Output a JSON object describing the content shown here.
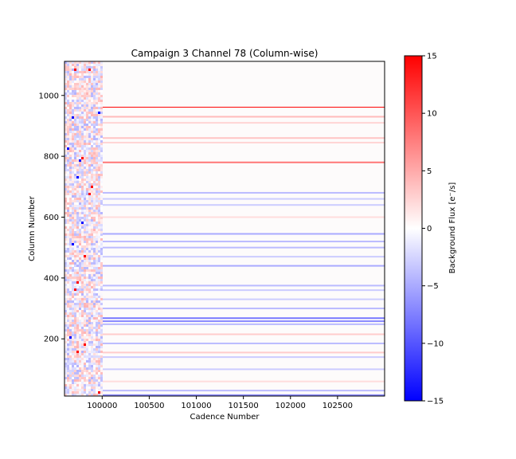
{
  "chart_data": {
    "type": "heatmap",
    "title": "Campaign 3 Channel 78 (Column-wise)",
    "xlabel": "Cadence Number",
    "ylabel": "Column Number",
    "xlim": [
      99600,
      103000
    ],
    "ylim": [
      12,
      1112
    ],
    "xticks": [
      100000,
      100500,
      101000,
      101500,
      102000,
      102500
    ],
    "xtick_labels": [
      "100000",
      "100500",
      "101000",
      "101500",
      "102000",
      "102500"
    ],
    "yticks": [
      200,
      400,
      600,
      800,
      1000
    ],
    "ytick_labels": [
      "200",
      "400",
      "600",
      "800",
      "1000"
    ],
    "colorbar": {
      "label": "Background Flux [e⁻/s]",
      "range": [
        -15,
        15
      ],
      "ticks": [
        -15,
        -10,
        -5,
        0,
        5,
        10,
        15
      ],
      "tick_labels": [
        "−15",
        "−10",
        "−5",
        "0",
        "5",
        "10",
        "15"
      ],
      "colormap": "bwr",
      "colors": {
        "low": "#0000ff",
        "mid": "#ffffff",
        "high": "#ff0000"
      }
    },
    "noisy_region_end_cadence": 100000,
    "column_bands": [
      {
        "column": 960,
        "value": 15
      },
      {
        "column": 930,
        "value": 4
      },
      {
        "column": 910,
        "value": 2.5
      },
      {
        "column": 860,
        "value": 3.5
      },
      {
        "column": 845,
        "value": 2.5
      },
      {
        "column": 780,
        "value": 8
      },
      {
        "column": 680,
        "value": -4
      },
      {
        "column": 660,
        "value": -3
      },
      {
        "column": 640,
        "value": -3
      },
      {
        "column": 600,
        "value": 2
      },
      {
        "column": 545,
        "value": -5
      },
      {
        "column": 520,
        "value": -4
      },
      {
        "column": 500,
        "value": -4
      },
      {
        "column": 470,
        "value": -3
      },
      {
        "column": 440,
        "value": -5
      },
      {
        "column": 375,
        "value": -4
      },
      {
        "column": 360,
        "value": -3
      },
      {
        "column": 330,
        "value": -3
      },
      {
        "column": 300,
        "value": -4
      },
      {
        "column": 268,
        "value": -8
      },
      {
        "column": 258,
        "value": -7
      },
      {
        "column": 248,
        "value": -4
      },
      {
        "column": 215,
        "value": 3
      },
      {
        "column": 185,
        "value": -4
      },
      {
        "column": 155,
        "value": 3
      },
      {
        "column": 140,
        "value": -3
      },
      {
        "column": 100,
        "value": -3
      },
      {
        "column": 60,
        "value": 2
      },
      {
        "column": 30,
        "value": -4
      },
      {
        "column": 15,
        "value": -7
      }
    ]
  }
}
